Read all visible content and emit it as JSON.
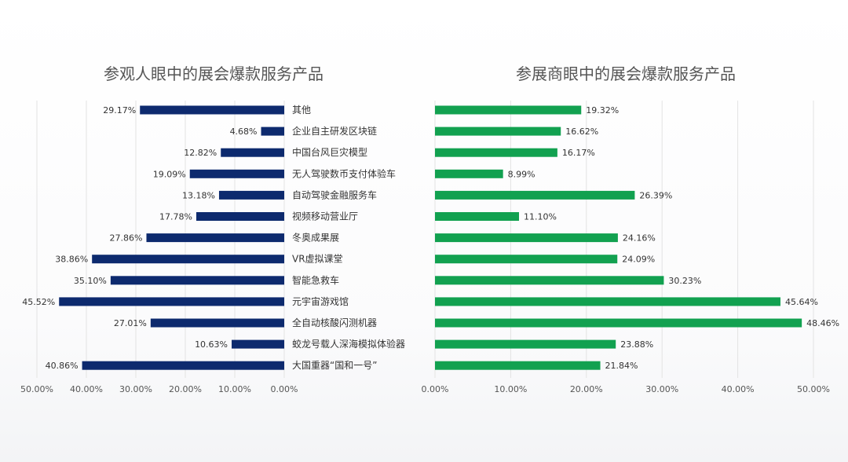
{
  "categories": [
    "其他",
    "企业自主研发区块链",
    "中国台风巨灾模型",
    "无人驾驶数币支付体验车",
    "自动驾驶金融服务车",
    "视频移动营业厅",
    "冬奥成果展",
    "VR虚拟课堂",
    "智能急救车",
    "元宇宙游戏馆",
    "全自动核酸闪测机器",
    "蛟龙号载人深海模拟体验器",
    "大国重器“国和一号”"
  ],
  "chart_data": [
    {
      "type": "bar",
      "orientation": "horizontal",
      "direction": "right-to-left",
      "title": "参观人眼中的展会爆款服务产品",
      "color": "#0d2a6e",
      "xlim": [
        0,
        50
      ],
      "xticks": [
        "50.00%",
        "40.00%",
        "30.00%",
        "20.00%",
        "10.00%",
        "0.00%"
      ],
      "grid": true,
      "values": [
        29.17,
        4.68,
        12.82,
        19.09,
        13.18,
        17.78,
        27.86,
        38.86,
        35.1,
        45.52,
        27.01,
        10.63,
        40.86
      ],
      "labels": [
        "29.17%",
        "4.68%",
        "12.82%",
        "19.09%",
        "13.18%",
        "17.78%",
        "27.86%",
        "38.86%",
        "35.10%",
        "45.52%",
        "27.01%",
        "10.63%",
        "40.86%"
      ]
    },
    {
      "type": "bar",
      "orientation": "horizontal",
      "direction": "left-to-right",
      "title": "参展商眼中的展会爆款服务产品",
      "color": "#12a150",
      "xlim": [
        0,
        50
      ],
      "xticks": [
        "0.00%",
        "10.00%",
        "20.00%",
        "30.00%",
        "40.00%",
        "50.00%"
      ],
      "grid": true,
      "values": [
        19.32,
        16.62,
        16.17,
        8.99,
        26.39,
        11.1,
        24.16,
        24.09,
        30.23,
        45.64,
        48.46,
        23.88,
        21.84
      ],
      "labels": [
        "19.32%",
        "16.62%",
        "16.17%",
        "8.99%",
        "26.39%",
        "11.10%",
        "24.16%",
        "24.09%",
        "30.23%",
        "45.64%",
        "48.46%",
        "23.88%",
        "21.84%"
      ]
    }
  ]
}
